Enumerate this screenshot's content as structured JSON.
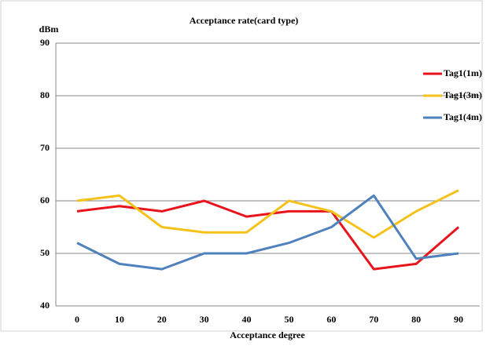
{
  "chart_data": {
    "type": "line",
    "title": "Acceptance rate(card type)",
    "y_label": "dBm",
    "x_label": "Acceptance degree",
    "x": [
      0,
      10,
      20,
      30,
      40,
      50,
      60,
      70,
      80,
      90
    ],
    "xlim": [
      -5,
      95
    ],
    "xticks": [
      0,
      10,
      20,
      30,
      40,
      50,
      60,
      70,
      80,
      90
    ],
    "ylim": [
      40,
      90
    ],
    "yticks": [
      40,
      50,
      60,
      70,
      80,
      90
    ],
    "grid": true,
    "legend": "upper right",
    "series": [
      {
        "name": "Tag1(1m)",
        "color": "#e8141b",
        "values": [
          58,
          59,
          58,
          60,
          57,
          58,
          58,
          47,
          48,
          55
        ]
      },
      {
        "name": "Tag1(3m)",
        "color": "#f5c21b",
        "values": [
          60,
          61,
          55,
          54,
          54,
          60,
          58,
          53,
          58,
          62
        ]
      },
      {
        "name": "Tag1(4m)",
        "color": "#4f81bd",
        "values": [
          52,
          48,
          47,
          50,
          50,
          52,
          55,
          61,
          49,
          50
        ]
      }
    ]
  }
}
